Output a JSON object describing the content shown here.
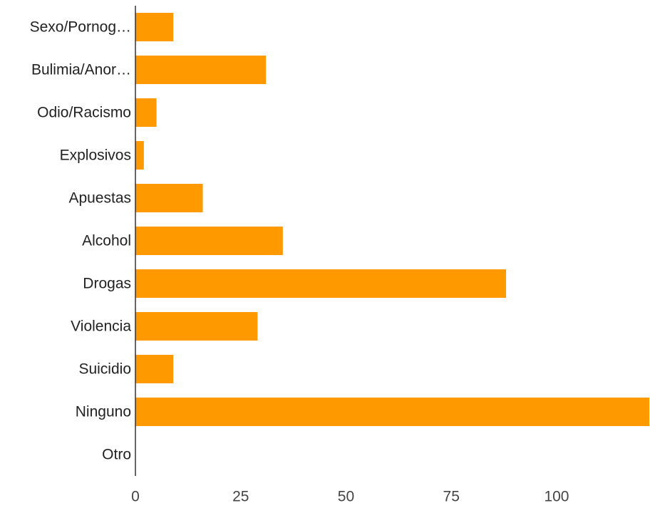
{
  "chart_data": {
    "type": "bar",
    "orientation": "horizontal",
    "categories": [
      "Sexo/Pornog…",
      "Bulimia/Anor…",
      "Odio/Racismo",
      "Explosivos",
      "Apuestas",
      "Alcohol",
      "Drogas",
      "Violencia",
      "Suicidio",
      "Ninguno",
      "Otro"
    ],
    "values": [
      9,
      31,
      5,
      2,
      16,
      35,
      88,
      29,
      9,
      122,
      0
    ],
    "xlim": [
      0,
      122
    ],
    "x_ticks": [
      0,
      25,
      50,
      75,
      100
    ],
    "x_tick_labels": [
      "0",
      "25",
      "50",
      "75",
      "100"
    ],
    "grid": false,
    "bar_color": "#ff9900",
    "axis_color": "#333333"
  }
}
